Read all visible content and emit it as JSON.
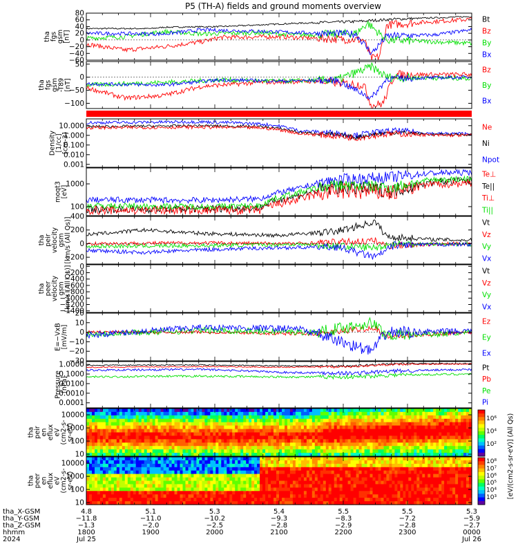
{
  "title": "P5 (TH-A) fields and ground moments overview",
  "colors": {
    "black": "#000000",
    "red": "#ff0000",
    "green": "#00e000",
    "blue": "#0000ff"
  },
  "panels": [
    {
      "id": "fgs",
      "ylabel": [
        "tha",
        "fgs",
        "gsm",
        "[nT]"
      ],
      "ylim": [
        -60,
        80
      ],
      "ticks": [
        {
          "v": 80,
          "label": "80"
        },
        {
          "v": 60,
          "label": "60"
        },
        {
          "v": 40,
          "label": "40"
        },
        {
          "v": 20,
          "label": "20"
        },
        {
          "v": 0,
          "label": "0"
        },
        {
          "v": -20,
          "label": "−20"
        },
        {
          "v": -40,
          "label": "−40"
        },
        {
          "v": -60,
          "label": "−60"
        }
      ],
      "legend": [
        {
          "label": "Bt",
          "color": "#000000"
        },
        {
          "label": "Bz",
          "color": "#ff0000"
        },
        {
          "label": "By",
          "color": "#00e000"
        },
        {
          "label": "Bx",
          "color": "#0000ff"
        }
      ]
    },
    {
      "id": "fgs_detrend",
      "ylabel": [
        "tha",
        "fgs",
        "gsm",
        "-T89",
        "[nT]"
      ],
      "ylim": [
        -120,
        60
      ],
      "ticks": [
        {
          "v": 50,
          "label": "50"
        },
        {
          "v": 0,
          "label": "0"
        },
        {
          "v": -50,
          "label": "−50"
        },
        {
          "v": -100,
          "label": "−100"
        }
      ],
      "legend": [
        {
          "label": "Bz",
          "color": "#ff0000"
        },
        {
          "label": "By",
          "color": "#00e000"
        },
        {
          "label": "Bx",
          "color": "#0000ff"
        }
      ]
    },
    {
      "id": "density",
      "ylabel": [
        "Density",
        "[1/cc]",
        "[cm-3]"
      ],
      "log": true,
      "ylim": [
        0.0005,
        50
      ],
      "ticks": [
        {
          "v": 10,
          "label": "10.000"
        },
        {
          "v": 1,
          "label": "1.000"
        },
        {
          "v": 0.1,
          "label": "0.100"
        },
        {
          "v": 0.01,
          "label": "0.010"
        },
        {
          "v": 0.001,
          "label": "0.001"
        }
      ],
      "legend": [
        {
          "label": "Ne",
          "color": "#ff0000"
        },
        {
          "label": "Ni",
          "color": "#000000"
        },
        {
          "label": "Npot",
          "color": "#0000ff"
        }
      ]
    },
    {
      "id": "temperature",
      "ylabel": [
        "moqt3",
        "[eV]"
      ],
      "log": true,
      "ylim": [
        40,
        5000
      ],
      "ticks": [
        {
          "v": 1000,
          "label": "1000"
        },
        {
          "v": 100,
          "label": "100"
        }
      ],
      "legend": [
        {
          "label": "Te⊥",
          "color": "#ff0000"
        },
        {
          "label": "Te||",
          "color": "#000000"
        },
        {
          "label": "Ti⊥",
          "color": "#ff0000"
        },
        {
          "label": "Ti||",
          "color": "#00e000"
        }
      ]
    },
    {
      "id": "peir_vel",
      "ylabel": [
        "tha",
        "peir",
        "velocity",
        "gsm",
        "[km/s (All Qs)]"
      ],
      "ylim": [
        -300,
        400
      ],
      "ticks": [
        {
          "v": 400,
          "label": "400"
        },
        {
          "v": 200,
          "label": "200"
        },
        {
          "v": 0,
          "label": "0"
        },
        {
          "v": -200,
          "label": "−200"
        }
      ],
      "legend": [
        {
          "label": "Vt",
          "color": "#000000"
        },
        {
          "label": "Vz",
          "color": "#ff0000"
        },
        {
          "label": "Vy",
          "color": "#00e000"
        },
        {
          "label": "Vx",
          "color": "#0000ff"
        }
      ]
    },
    {
      "id": "peer_vel",
      "ylabel": [
        "tha",
        "peer",
        "velocity",
        "gsm",
        "[km/s (All Qs)]"
      ],
      "ylim": [
        -1450,
        50
      ],
      "ticks": [
        {
          "v": 0,
          "label": "0"
        },
        {
          "v": -200,
          "label": "−200"
        },
        {
          "v": -400,
          "label": "−400"
        },
        {
          "v": -600,
          "label": "−600"
        },
        {
          "v": -800,
          "label": "−800"
        },
        {
          "v": -1000,
          "label": "−1000"
        },
        {
          "v": -1200,
          "label": "−1200"
        },
        {
          "v": -1400,
          "label": "−1400"
        }
      ],
      "legend": [
        {
          "label": "Vt",
          "color": "#000000"
        },
        {
          "label": "Vz",
          "color": "#ff0000"
        },
        {
          "label": "Vy",
          "color": "#00e000"
        },
        {
          "label": "Vx",
          "color": "#0000ff"
        }
      ]
    },
    {
      "id": "efield",
      "ylabel": [
        "E=−VxB",
        "[mV/m]"
      ],
      "ylim": [
        -30,
        20
      ],
      "ticks": [
        {
          "v": 20,
          "label": "20"
        },
        {
          "v": 10,
          "label": "10"
        },
        {
          "v": 0,
          "label": "0"
        },
        {
          "v": -10,
          "label": "−10"
        },
        {
          "v": -20,
          "label": "−20"
        },
        {
          "v": -30,
          "label": "−30"
        }
      ],
      "legend": [
        {
          "label": "Ez",
          "color": "#ff0000"
        },
        {
          "label": "Ey",
          "color": "#00e000"
        },
        {
          "label": "Ex",
          "color": "#0000ff"
        }
      ]
    },
    {
      "id": "pressure",
      "ylabel": [
        "Pressure",
        "[nPa]"
      ],
      "log": true,
      "ylim": [
        3e-05,
        2
      ],
      "ticks": [
        {
          "v": 1,
          "label": "1.0000"
        },
        {
          "v": 0.1,
          "label": "0.1000"
        },
        {
          "v": 0.01,
          "label": "0.0100"
        },
        {
          "v": 0.001,
          "label": "0.0010"
        },
        {
          "v": 0.0001,
          "label": "0.0001"
        }
      ],
      "legend": [
        {
          "label": "Pt",
          "color": "#000000"
        },
        {
          "label": "Pb",
          "color": "#ff0000"
        },
        {
          "label": "Pe",
          "color": "#00e000"
        },
        {
          "label": "Pi",
          "color": "#0000ff"
        }
      ]
    },
    {
      "id": "peir_spec",
      "ylabel": [
        "tha",
        "peir",
        "en",
        "eflux",
        "eV",
        "(cm2-s-",
        "sr-eV)"
      ],
      "log": true,
      "ylim": [
        7,
        30000
      ],
      "ticks": [
        {
          "v": 10000,
          "label": "10000"
        },
        {
          "v": 1000,
          "label": "1000"
        },
        {
          "v": 100,
          "label": "100"
        },
        {
          "v": 10,
          "label": "10"
        }
      ]
    },
    {
      "id": "peer_spec",
      "ylabel": [
        "tha",
        "peer",
        "en",
        "eflux",
        "eV",
        "(cm2-s-",
        "sr-eV)"
      ],
      "log": true,
      "ylim": [
        7,
        30000
      ],
      "ticks": [
        {
          "v": 10000,
          "label": "10000"
        },
        {
          "v": 1000,
          "label": "1000"
        },
        {
          "v": 100,
          "label": "100"
        },
        {
          "v": 10,
          "label": "10"
        }
      ]
    }
  ],
  "colorbar": {
    "label": "[eV/(cm2-s-sr-eV)] (All Qs)",
    "ticks_ion": [
      "10⁶",
      "10⁴",
      "10²"
    ],
    "ticks_ele": [
      "10⁸",
      "10⁷",
      "10⁶",
      "10⁵",
      "10⁴",
      "10³"
    ]
  },
  "xaxis": {
    "row_labels": [
      "tha_X-GSM",
      "tha_Y-GSM",
      "tha_Z-GSM",
      "hhmm",
      "2024"
    ],
    "ticks": [
      {
        "t": 0.0,
        "x": "4.8",
        "y": "−11.8",
        "z": "−1.3",
        "hhmm": "1800",
        "date": "Jul 25"
      },
      {
        "t": 0.167,
        "x": "5.1",
        "y": "−11.0",
        "z": "−2.0",
        "hhmm": "1900",
        "date": ""
      },
      {
        "t": 0.333,
        "x": "5.3",
        "y": "−10.2",
        "z": "−2.5",
        "hhmm": "2000",
        "date": ""
      },
      {
        "t": 0.5,
        "x": "5.4",
        "y": "−9.3",
        "z": "−2.8",
        "hhmm": "2100",
        "date": ""
      },
      {
        "t": 0.667,
        "x": "5.5",
        "y": "−8.3",
        "z": "−2.9",
        "hhmm": "2200",
        "date": ""
      },
      {
        "t": 0.833,
        "x": "5.5",
        "y": "−7.2",
        "z": "−2.8",
        "hhmm": "2300",
        "date": ""
      },
      {
        "t": 1.0,
        "x": "5.3",
        "y": "−5.9",
        "z": "−2.7",
        "hhmm": "0000",
        "date": "Jul 26"
      }
    ]
  },
  "chart_data": {
    "type": "line",
    "title": "P5 (TH-A) fields and ground moments overview",
    "x": [
      "1800",
      "1900",
      "2000",
      "2100",
      "2200",
      "2300",
      "0000"
    ],
    "series": [
      {
        "name": "Bt",
        "values": [
          30,
          35,
          42,
          48,
          55,
          62,
          70
        ]
      },
      {
        "name": "Bz",
        "values": [
          -10,
          -20,
          5,
          5,
          0,
          45,
          60
        ]
      },
      {
        "name": "By",
        "values": [
          0,
          20,
          18,
          15,
          8,
          0,
          -8
        ]
      },
      {
        "name": "Bx",
        "values": [
          20,
          20,
          25,
          20,
          15,
          15,
          25
        ]
      },
      {
        "name": "Vt",
        "values": [
          120,
          200,
          150,
          130,
          160,
          60,
          40
        ]
      },
      {
        "name": "Ne",
        "values": [
          5,
          6,
          5,
          2,
          0.5,
          0.3,
          1
        ]
      }
    ]
  }
}
